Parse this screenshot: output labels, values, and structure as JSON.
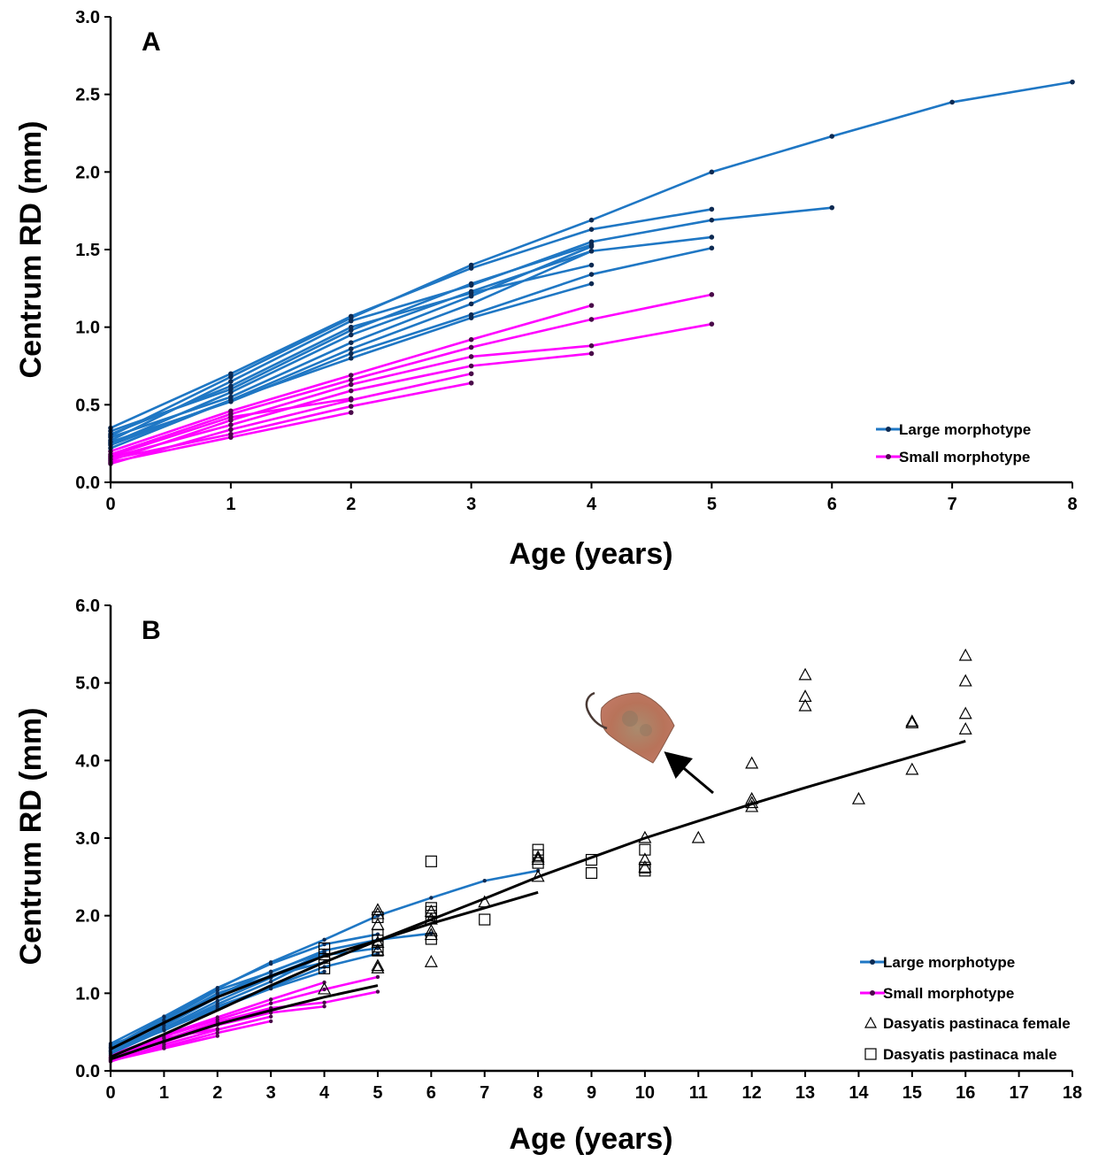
{
  "chart_data": [
    {
      "panel": "A",
      "type": "line",
      "xlabel": "Age  (years)",
      "ylabel": "Centrum RD (mm)",
      "xlim": [
        0,
        8
      ],
      "ylim": [
        0,
        3
      ],
      "xticks": [
        0,
        1,
        2,
        3,
        4,
        5,
        6,
        7,
        8
      ],
      "yticks": [
        "0.0",
        "0.5",
        "1.0",
        "1.5",
        "2.0",
        "2.5",
        "3.0"
      ],
      "grid": false,
      "legend": {
        "position": "bottom-right",
        "entries": [
          {
            "label": "Large morphotype",
            "color": "#1f77c4"
          },
          {
            "label": "Small morphotype",
            "color": "#ff00ff"
          }
        ]
      },
      "large_morphotype": [
        [
          0.3,
          0.68,
          1.06,
          1.4,
          1.69,
          2.0,
          2.23,
          2.45,
          2.58
        ],
        [
          0.35,
          0.7,
          1.07,
          1.38,
          1.63,
          1.76
        ],
        [
          0.27,
          0.65,
          1.04,
          1.27,
          1.55,
          1.69,
          1.77
        ],
        [
          0.33,
          0.6,
          0.98,
          1.28,
          1.53
        ],
        [
          0.25,
          0.58,
          0.95,
          1.23,
          1.49
        ],
        [
          0.29,
          0.55,
          0.9,
          1.2,
          1.52
        ],
        [
          0.22,
          0.53,
          0.86,
          1.15,
          1.49,
          1.58
        ],
        [
          0.26,
          0.52,
          0.83,
          1.08,
          1.34,
          1.51
        ],
        [
          0.24,
          0.53,
          0.8,
          1.06,
          1.28
        ],
        [
          0.31,
          0.62,
          1.0,
          1.22,
          1.4
        ]
      ],
      "small_morphotype": [
        [
          0.2,
          0.46,
          0.69,
          0.92,
          1.14
        ],
        [
          0.18,
          0.44,
          0.66,
          0.87,
          1.05,
          1.21
        ],
        [
          0.14,
          0.4,
          0.63,
          0.81,
          0.88,
          1.02
        ],
        [
          0.16,
          0.37,
          0.59,
          0.75,
          0.83
        ],
        [
          0.12,
          0.34,
          0.53,
          0.7
        ],
        [
          0.15,
          0.31,
          0.49,
          0.64
        ],
        [
          0.13,
          0.29,
          0.45
        ],
        [
          0.17,
          0.42,
          0.54
        ]
      ]
    },
    {
      "panel": "B",
      "type": "scatter",
      "xlabel": "Age  (years)",
      "ylabel": "Centrum RD (mm)",
      "xlim": [
        0,
        18
      ],
      "ylim": [
        0,
        6
      ],
      "xticks": [
        0,
        1,
        2,
        3,
        4,
        5,
        6,
        7,
        8,
        9,
        10,
        11,
        12,
        13,
        14,
        15,
        16,
        17,
        18
      ],
      "yticks": [
        "0.0",
        "1.0",
        "2.0",
        "3.0",
        "4.0",
        "5.0",
        "6.0"
      ],
      "grid": false,
      "legend": {
        "position": "bottom-right",
        "entries": [
          {
            "label": "Large morphotype",
            "color": "#1f77c4"
          },
          {
            "label": "Small morphotype",
            "color": "#ff00ff"
          },
          {
            "label": "Dasyatis pastinaca female",
            "marker": "triangle"
          },
          {
            "label": "Dasyatis pastinaca male",
            "marker": "square"
          }
        ]
      },
      "fitted_curves": [
        {
          "x": [
            0,
            1,
            2,
            3,
            4,
            5,
            6,
            7,
            8
          ],
          "y": [
            0.28,
            0.62,
            0.95,
            1.22,
            1.48,
            1.68,
            1.9,
            2.1,
            2.3
          ]
        },
        {
          "x": [
            0,
            1,
            2,
            3,
            4,
            5
          ],
          "y": [
            0.15,
            0.38,
            0.6,
            0.78,
            0.95,
            1.1
          ]
        },
        {
          "x": [
            0,
            1,
            2,
            3,
            4,
            5,
            6,
            7,
            8,
            9,
            10,
            11,
            12,
            13,
            14,
            15,
            16
          ],
          "y": [
            0.18,
            0.47,
            0.78,
            1.1,
            1.4,
            1.68,
            1.95,
            2.22,
            2.5,
            2.75,
            3.0,
            3.22,
            3.44,
            3.65,
            3.85,
            4.05,
            4.25
          ]
        }
      ],
      "female": [
        [
          4,
          1.05
        ],
        [
          5,
          2.07
        ],
        [
          5,
          2.02
        ],
        [
          5,
          1.88
        ],
        [
          5,
          1.35
        ],
        [
          5,
          1.32
        ],
        [
          5,
          1.65
        ],
        [
          5,
          1.55
        ],
        [
          6,
          2.05
        ],
        [
          6,
          1.95
        ],
        [
          6,
          1.8
        ],
        [
          6,
          1.75
        ],
        [
          6,
          1.4
        ],
        [
          7,
          2.17
        ],
        [
          8,
          2.75
        ],
        [
          8,
          2.72
        ],
        [
          8,
          2.5
        ],
        [
          10,
          3.0
        ],
        [
          10,
          2.72
        ],
        [
          10,
          2.62
        ],
        [
          11,
          3.0
        ],
        [
          12,
          3.96
        ],
        [
          12,
          3.5
        ],
        [
          12,
          3.45
        ],
        [
          12,
          3.4
        ],
        [
          13,
          5.1
        ],
        [
          13,
          4.82
        ],
        [
          13,
          4.7
        ],
        [
          14,
          3.5
        ],
        [
          15,
          4.5
        ],
        [
          15,
          4.48
        ],
        [
          15,
          3.88
        ],
        [
          16,
          5.35
        ],
        [
          16,
          5.02
        ],
        [
          16,
          4.6
        ],
        [
          16,
          4.4
        ]
      ],
      "male": [
        [
          4,
          1.58
        ],
        [
          4,
          1.5
        ],
        [
          4,
          1.4
        ],
        [
          4,
          1.32
        ],
        [
          5,
          1.98
        ],
        [
          5,
          1.75
        ],
        [
          5,
          1.68
        ],
        [
          5,
          1.6
        ],
        [
          5,
          1.55
        ],
        [
          6,
          2.7
        ],
        [
          6,
          2.1
        ],
        [
          6,
          2.05
        ],
        [
          6,
          2.0
        ],
        [
          6,
          1.7
        ],
        [
          7,
          1.95
        ],
        [
          8,
          2.85
        ],
        [
          8,
          2.78
        ],
        [
          8,
          2.68
        ],
        [
          9,
          2.72
        ],
        [
          9,
          2.55
        ],
        [
          10,
          2.85
        ],
        [
          10,
          2.62
        ],
        [
          10,
          2.58
        ]
      ]
    }
  ]
}
